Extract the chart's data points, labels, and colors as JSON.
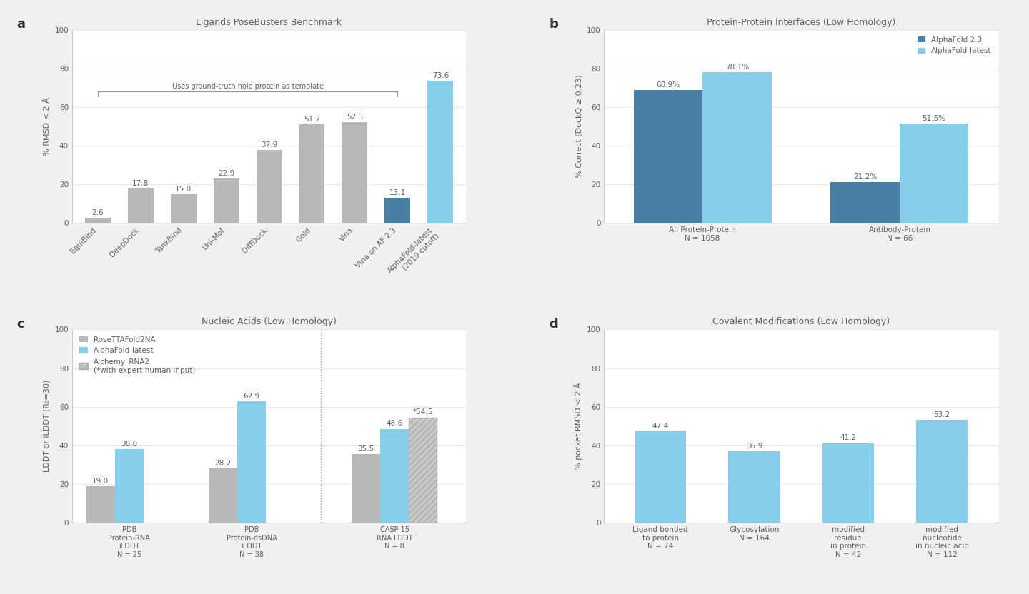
{
  "panel_a": {
    "title": "Ligands PoseBusters Benchmark",
    "ylabel": "% RMSD < 2 Å",
    "ylim": [
      0,
      100
    ],
    "yticks": [
      0,
      20,
      40,
      60,
      80,
      100
    ],
    "categories": [
      "EquiBind",
      "DeepDock",
      "TankBind",
      "Uni-Mol",
      "DiffDock",
      "Gold",
      "Vina",
      "Vina on AF 2.3",
      "AlphaFold-latest\n(2019 cutoff)"
    ],
    "values": [
      2.6,
      17.8,
      15.0,
      22.9,
      37.9,
      51.2,
      52.3,
      13.1,
      73.6
    ],
    "colors": [
      "#b8b8b8",
      "#b8b8b8",
      "#b8b8b8",
      "#b8b8b8",
      "#b8b8b8",
      "#b8b8b8",
      "#b8b8b8",
      "#4a7fa5",
      "#87ceeb"
    ],
    "bracket_label": "Uses ground-truth holo protein as template",
    "label_values": [
      "2.6",
      "17.8",
      "15.0",
      "22.9",
      "37.9",
      "51.2",
      "52.3",
      "13.1",
      "73.6"
    ]
  },
  "panel_b": {
    "title": "Protein-Protein Interfaces (Low Homology)",
    "ylabel": "% Correct (DockQ ≥ 0.23)",
    "ylim": [
      0,
      100
    ],
    "yticks": [
      0,
      20,
      40,
      60,
      80,
      100
    ],
    "groups": [
      "All Protein-Protein\nN = 1058",
      "Antibody-Protein\nN = 66"
    ],
    "af23_values": [
      68.9,
      21.2
    ],
    "latest_values": [
      78.1,
      51.5
    ],
    "af23_color": "#4a7fa5",
    "latest_color": "#87ceeb",
    "legend_labels": [
      "AlphaFold 2.3",
      "AlphaFold-latest"
    ],
    "label_values_af23": [
      "68.9%",
      "21.2%"
    ],
    "label_values_latest": [
      "78.1%",
      "51.5%"
    ]
  },
  "panel_c": {
    "title": "Nucleic Acids (Low Homology)",
    "ylabel": "LDDT or iLDDT (R₀=30)",
    "ylim": [
      0,
      100
    ],
    "yticks": [
      0,
      20,
      40,
      60,
      80,
      100
    ],
    "groups": [
      "PDB\nProtein-RNA\niLDDT\nN = 25",
      "PDB\nProtein-dsDNA\niLDDT\nN = 38",
      "CASP 15\nRNA LDDT\nN = 8"
    ],
    "rosetta_values": [
      19.0,
      28.2,
      35.5
    ],
    "latest_values": [
      38.0,
      62.9,
      48.6
    ],
    "alchemy_values": [
      null,
      null,
      54.5
    ],
    "rosetta_color": "#b8b8b8",
    "latest_color": "#87ceeb",
    "alchemy_color": "#c8c8c8",
    "legend_labels": [
      "RoseTTAFold2NA",
      "AlphaFold-latest",
      "Alchemy_RNA2\n(*with expert human input)"
    ],
    "label_rosetta": [
      "19.0",
      "28.2",
      "35.5"
    ],
    "label_latest": [
      "38.0",
      "62.9",
      "48.6"
    ],
    "label_alchemy": "*54.5"
  },
  "panel_d": {
    "title": "Covalent Modifications (Low Homology)",
    "ylabel": "% pocket RMSD < 2 Å",
    "ylim": [
      0,
      100
    ],
    "yticks": [
      0,
      20,
      40,
      60,
      80,
      100
    ],
    "categories": [
      "Ligand bonded\nto protein\nN = 74",
      "Glycosylation\nN = 164",
      "modified\nresidue\nin protein\nN = 42",
      "modified\nnucleotide\nin nucleic acid\nN = 112"
    ],
    "values": [
      47.4,
      36.9,
      41.2,
      53.2
    ],
    "color": "#87ceeb",
    "label_values": [
      "47.4",
      "36.9",
      "41.2",
      "53.2"
    ]
  },
  "bg_color": "#f0f0f0",
  "panel_bg": "#ffffff",
  "text_color": "#606060",
  "grid_color": "#e8e8e8",
  "spine_color": "#cccccc",
  "fontsize_title": 9,
  "fontsize_ylabel": 8,
  "fontsize_tick": 7.5,
  "fontsize_bar_label": 7.5,
  "fontsize_legend": 7.5,
  "fontsize_panel_label": 13
}
